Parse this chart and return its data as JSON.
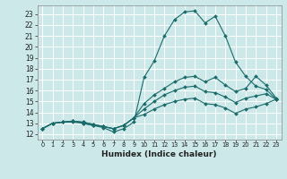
{
  "title": "",
  "xlabel": "Humidex (Indice chaleur)",
  "bg_color": "#cce8e8",
  "grid_color": "#ffffff",
  "line_color": "#1a6b6b",
  "markersize": 2.0,
  "linewidth": 0.8,
  "xlim": [
    -0.5,
    23.5
  ],
  "ylim": [
    11.5,
    23.8
  ],
  "xticks": [
    0,
    1,
    2,
    3,
    4,
    5,
    6,
    7,
    8,
    9,
    10,
    11,
    12,
    13,
    14,
    15,
    16,
    17,
    18,
    19,
    20,
    21,
    22,
    23
  ],
  "yticks": [
    12,
    13,
    14,
    15,
    16,
    17,
    18,
    19,
    20,
    21,
    22,
    23
  ],
  "curve_max": [
    12.5,
    13.0,
    13.1,
    13.1,
    13.0,
    12.8,
    12.6,
    12.2,
    12.5,
    13.1,
    17.2,
    18.7,
    21.0,
    22.5,
    23.2,
    23.3,
    22.2,
    22.8,
    21.0,
    18.6,
    17.3,
    16.4,
    16.1,
    15.2
  ],
  "curve_upper": [
    12.5,
    13.0,
    13.1,
    13.2,
    13.0,
    12.8,
    12.7,
    12.5,
    12.8,
    13.5,
    14.8,
    15.6,
    16.2,
    16.8,
    17.2,
    17.3,
    16.8,
    17.2,
    16.5,
    15.9,
    16.2,
    17.3,
    16.5,
    15.3
  ],
  "curve_mid": [
    12.5,
    13.0,
    13.1,
    13.2,
    13.1,
    12.9,
    12.7,
    12.5,
    12.8,
    13.5,
    14.3,
    15.0,
    15.6,
    16.0,
    16.3,
    16.4,
    15.9,
    15.8,
    15.4,
    14.9,
    15.3,
    15.5,
    15.7,
    15.2
  ],
  "curve_lower": [
    12.5,
    13.0,
    13.1,
    13.2,
    13.1,
    12.9,
    12.7,
    12.5,
    12.8,
    13.5,
    13.8,
    14.3,
    14.7,
    15.0,
    15.2,
    15.3,
    14.8,
    14.7,
    14.4,
    13.9,
    14.3,
    14.5,
    14.8,
    15.2
  ]
}
